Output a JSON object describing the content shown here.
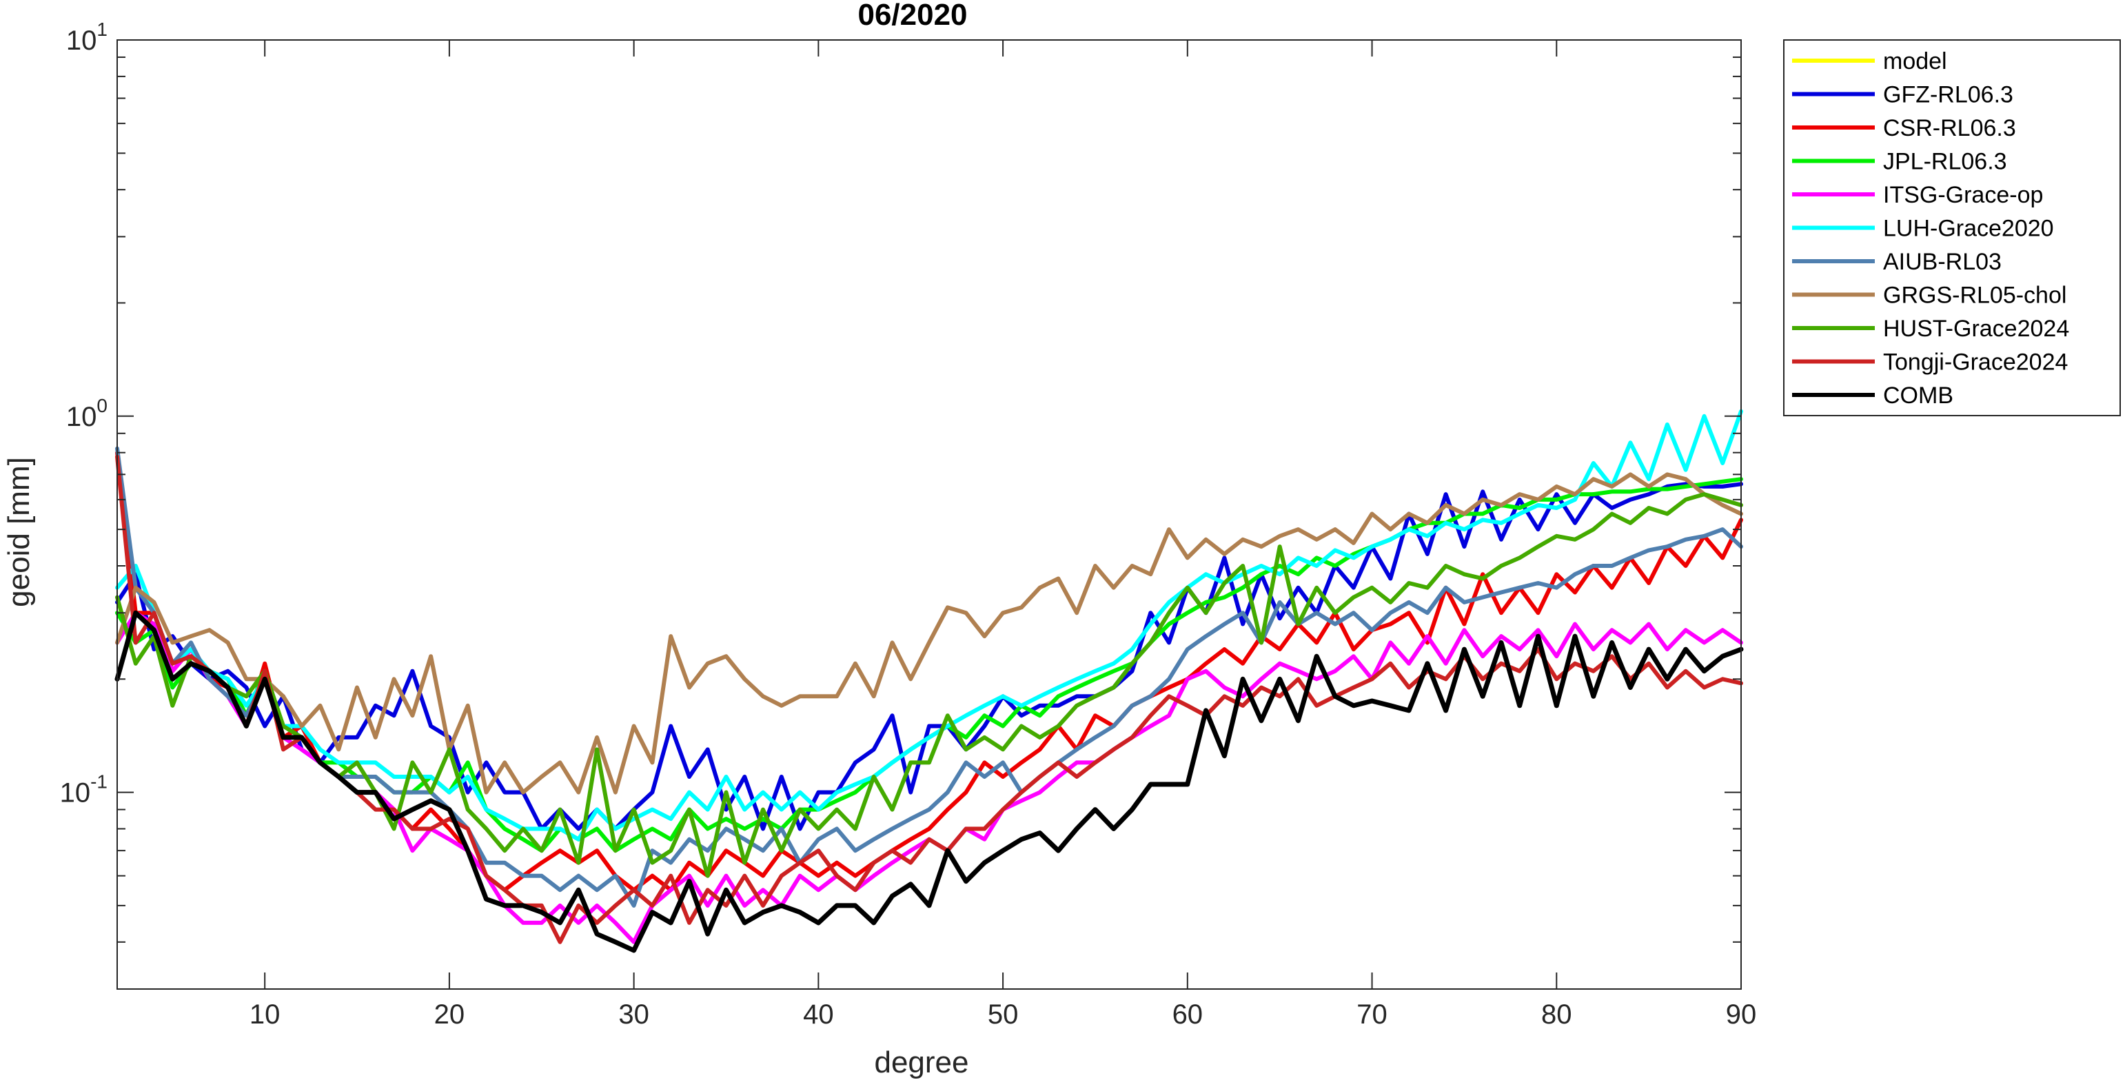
{
  "chart_data": {
    "type": "line",
    "title": "06/2020",
    "xlabel": "degree",
    "ylabel": "geoid [mm]",
    "xlim": [
      2,
      90
    ],
    "ylim": [
      0.03,
      10
    ],
    "yscale": "log",
    "grid": false,
    "legend_position": "outside-top-right",
    "x_ticks": [
      10,
      20,
      30,
      40,
      50,
      60,
      70,
      80,
      90
    ],
    "y_ticks": [
      {
        "value": 0.1,
        "base": "10",
        "exp": "-1"
      },
      {
        "value": 1,
        "base": "10",
        "exp": "0"
      },
      {
        "value": 10,
        "base": "10",
        "exp": "1"
      }
    ],
    "x_start": 2,
    "series": [
      {
        "name": "model",
        "color": "#ffff00",
        "values": []
      },
      {
        "name": "GFZ-RL06.3",
        "color": "#0000dd",
        "values": [
          0.32,
          0.38,
          0.24,
          0.26,
          0.22,
          0.2,
          0.21,
          0.19,
          0.15,
          0.18,
          0.13,
          0.12,
          0.14,
          0.14,
          0.17,
          0.16,
          0.21,
          0.15,
          0.14,
          0.1,
          0.12,
          0.1,
          0.1,
          0.08,
          0.09,
          0.08,
          0.09,
          0.08,
          0.09,
          0.1,
          0.15,
          0.11,
          0.13,
          0.09,
          0.11,
          0.08,
          0.11,
          0.08,
          0.1,
          0.1,
          0.12,
          0.13,
          0.16,
          0.1,
          0.15,
          0.15,
          0.13,
          0.15,
          0.18,
          0.16,
          0.17,
          0.17,
          0.18,
          0.18,
          0.19,
          0.21,
          0.3,
          0.25,
          0.35,
          0.3,
          0.42,
          0.28,
          0.38,
          0.29,
          0.35,
          0.3,
          0.4,
          0.35,
          0.45,
          0.37,
          0.55,
          0.43,
          0.62,
          0.45,
          0.63,
          0.47,
          0.6,
          0.5,
          0.62,
          0.52,
          0.62,
          0.57,
          0.6,
          0.62,
          0.65,
          0.66,
          0.65,
          0.65,
          0.66
        ]
      },
      {
        "name": "CSR-RL06.3",
        "color": "#ee0000",
        "values": [
          0.8,
          0.3,
          0.3,
          0.21,
          0.24,
          0.2,
          0.19,
          0.15,
          0.22,
          0.14,
          0.15,
          0.12,
          0.11,
          0.1,
          0.1,
          0.09,
          0.08,
          0.09,
          0.08,
          0.07,
          0.06,
          0.055,
          0.06,
          0.065,
          0.07,
          0.065,
          0.07,
          0.06,
          0.055,
          0.06,
          0.055,
          0.065,
          0.06,
          0.07,
          0.065,
          0.06,
          0.07,
          0.065,
          0.06,
          0.065,
          0.06,
          0.065,
          0.07,
          0.075,
          0.08,
          0.09,
          0.1,
          0.12,
          0.11,
          0.12,
          0.13,
          0.15,
          0.13,
          0.16,
          0.15,
          0.17,
          0.18,
          0.19,
          0.2,
          0.22,
          0.24,
          0.22,
          0.26,
          0.24,
          0.28,
          0.25,
          0.3,
          0.24,
          0.27,
          0.28,
          0.3,
          0.25,
          0.35,
          0.28,
          0.38,
          0.3,
          0.35,
          0.3,
          0.38,
          0.34,
          0.4,
          0.35,
          0.42,
          0.36,
          0.45,
          0.4,
          0.48,
          0.42,
          0.53
        ]
      },
      {
        "name": "JPL-RL06.3",
        "color": "#00ee00",
        "values": [
          0.3,
          0.25,
          0.27,
          0.19,
          0.22,
          0.21,
          0.2,
          0.16,
          0.21,
          0.15,
          0.14,
          0.12,
          0.12,
          0.11,
          0.11,
          0.1,
          0.1,
          0.11,
          0.1,
          0.12,
          0.09,
          0.08,
          0.075,
          0.07,
          0.08,
          0.075,
          0.08,
          0.07,
          0.075,
          0.08,
          0.075,
          0.09,
          0.08,
          0.085,
          0.08,
          0.085,
          0.08,
          0.09,
          0.09,
          0.095,
          0.1,
          0.11,
          0.12,
          0.13,
          0.14,
          0.15,
          0.14,
          0.16,
          0.15,
          0.17,
          0.16,
          0.18,
          0.19,
          0.2,
          0.21,
          0.22,
          0.25,
          0.28,
          0.3,
          0.32,
          0.33,
          0.35,
          0.38,
          0.4,
          0.38,
          0.42,
          0.4,
          0.43,
          0.45,
          0.47,
          0.5,
          0.52,
          0.52,
          0.55,
          0.55,
          0.58,
          0.57,
          0.6,
          0.6,
          0.62,
          0.62,
          0.63,
          0.63,
          0.64,
          0.64,
          0.65,
          0.66,
          0.67,
          0.68
        ]
      },
      {
        "name": "ITSG-Grace-op",
        "color": "#ff00ff",
        "values": [
          0.25,
          0.3,
          0.28,
          0.21,
          0.24,
          0.2,
          0.18,
          0.15,
          0.21,
          0.14,
          0.13,
          0.12,
          0.11,
          0.1,
          0.1,
          0.09,
          0.07,
          0.08,
          0.075,
          0.07,
          0.06,
          0.05,
          0.045,
          0.045,
          0.05,
          0.045,
          0.05,
          0.045,
          0.04,
          0.05,
          0.055,
          0.06,
          0.05,
          0.06,
          0.05,
          0.055,
          0.05,
          0.06,
          0.055,
          0.06,
          0.055,
          0.06,
          0.065,
          0.07,
          0.075,
          0.07,
          0.08,
          0.075,
          0.09,
          0.095,
          0.1,
          0.11,
          0.12,
          0.12,
          0.13,
          0.14,
          0.15,
          0.16,
          0.2,
          0.21,
          0.19,
          0.18,
          0.2,
          0.22,
          0.21,
          0.2,
          0.21,
          0.23,
          0.2,
          0.25,
          0.22,
          0.26,
          0.22,
          0.27,
          0.23,
          0.26,
          0.24,
          0.27,
          0.23,
          0.28,
          0.24,
          0.27,
          0.25,
          0.28,
          0.24,
          0.27,
          0.25,
          0.27,
          0.25
        ]
      },
      {
        "name": "LUH-Grace2020",
        "color": "#00ffff",
        "values": [
          0.35,
          0.4,
          0.3,
          0.22,
          0.24,
          0.21,
          0.2,
          0.17,
          0.2,
          0.15,
          0.15,
          0.13,
          0.12,
          0.12,
          0.12,
          0.11,
          0.11,
          0.11,
          0.1,
          0.11,
          0.09,
          0.085,
          0.08,
          0.08,
          0.08,
          0.075,
          0.09,
          0.08,
          0.085,
          0.09,
          0.085,
          0.1,
          0.09,
          0.11,
          0.09,
          0.1,
          0.09,
          0.1,
          0.09,
          0.1,
          0.105,
          0.11,
          0.12,
          0.13,
          0.14,
          0.15,
          0.16,
          0.17,
          0.18,
          0.17,
          0.18,
          0.19,
          0.2,
          0.21,
          0.22,
          0.24,
          0.28,
          0.32,
          0.35,
          0.38,
          0.36,
          0.38,
          0.4,
          0.38,
          0.42,
          0.4,
          0.44,
          0.42,
          0.45,
          0.47,
          0.5,
          0.48,
          0.52,
          0.5,
          0.53,
          0.52,
          0.55,
          0.58,
          0.57,
          0.6,
          0.75,
          0.65,
          0.85,
          0.68,
          0.95,
          0.72,
          1.0,
          0.75,
          1.03
        ]
      },
      {
        "name": "AIUB-RL03",
        "color": "#4f7faf",
        "values": [
          0.82,
          0.35,
          0.3,
          0.22,
          0.25,
          0.2,
          0.18,
          0.16,
          0.2,
          0.14,
          0.14,
          0.12,
          0.11,
          0.11,
          0.11,
          0.1,
          0.1,
          0.1,
          0.09,
          0.08,
          0.065,
          0.065,
          0.06,
          0.06,
          0.055,
          0.06,
          0.055,
          0.06,
          0.05,
          0.07,
          0.065,
          0.075,
          0.07,
          0.08,
          0.075,
          0.07,
          0.08,
          0.065,
          0.075,
          0.08,
          0.07,
          0.075,
          0.08,
          0.085,
          0.09,
          0.1,
          0.12,
          0.11,
          0.12,
          0.1,
          0.11,
          0.12,
          0.13,
          0.14,
          0.15,
          0.17,
          0.18,
          0.2,
          0.24,
          0.26,
          0.28,
          0.3,
          0.25,
          0.32,
          0.28,
          0.3,
          0.28,
          0.3,
          0.27,
          0.3,
          0.32,
          0.3,
          0.35,
          0.32,
          0.33,
          0.34,
          0.35,
          0.36,
          0.35,
          0.38,
          0.4,
          0.4,
          0.42,
          0.44,
          0.45,
          0.47,
          0.48,
          0.5,
          0.45
        ]
      },
      {
        "name": "GRGS-RL05-chol",
        "color": "#b08050",
        "values": [
          0.25,
          0.35,
          0.32,
          0.25,
          0.26,
          0.27,
          0.25,
          0.2,
          0.2,
          0.18,
          0.15,
          0.17,
          0.13,
          0.19,
          0.14,
          0.2,
          0.16,
          0.23,
          0.13,
          0.17,
          0.1,
          0.12,
          0.1,
          0.11,
          0.12,
          0.1,
          0.14,
          0.1,
          0.15,
          0.12,
          0.26,
          0.19,
          0.22,
          0.23,
          0.2,
          0.18,
          0.17,
          0.18,
          0.18,
          0.18,
          0.22,
          0.18,
          0.25,
          0.2,
          0.25,
          0.31,
          0.3,
          0.26,
          0.3,
          0.31,
          0.35,
          0.37,
          0.3,
          0.4,
          0.35,
          0.4,
          0.38,
          0.5,
          0.42,
          0.47,
          0.43,
          0.47,
          0.45,
          0.48,
          0.5,
          0.47,
          0.5,
          0.46,
          0.55,
          0.5,
          0.55,
          0.52,
          0.58,
          0.55,
          0.6,
          0.58,
          0.62,
          0.6,
          0.65,
          0.62,
          0.68,
          0.65,
          0.7,
          0.65,
          0.7,
          0.68,
          0.62,
          0.58,
          0.55
        ]
      },
      {
        "name": "HUST-Grace2024",
        "color": "#44aa00",
        "values": [
          0.33,
          0.22,
          0.26,
          0.17,
          0.23,
          0.21,
          0.19,
          0.18,
          0.21,
          0.15,
          0.14,
          0.12,
          0.11,
          0.12,
          0.1,
          0.08,
          0.12,
          0.1,
          0.13,
          0.09,
          0.08,
          0.07,
          0.08,
          0.07,
          0.09,
          0.065,
          0.13,
          0.07,
          0.09,
          0.065,
          0.07,
          0.09,
          0.06,
          0.1,
          0.065,
          0.09,
          0.07,
          0.09,
          0.08,
          0.09,
          0.08,
          0.11,
          0.09,
          0.12,
          0.12,
          0.16,
          0.13,
          0.14,
          0.13,
          0.15,
          0.14,
          0.15,
          0.17,
          0.18,
          0.19,
          0.22,
          0.25,
          0.3,
          0.35,
          0.3,
          0.36,
          0.4,
          0.25,
          0.45,
          0.28,
          0.35,
          0.3,
          0.33,
          0.35,
          0.32,
          0.36,
          0.35,
          0.4,
          0.38,
          0.37,
          0.4,
          0.42,
          0.45,
          0.48,
          0.47,
          0.5,
          0.55,
          0.52,
          0.57,
          0.55,
          0.6,
          0.62,
          0.6,
          0.58
        ]
      },
      {
        "name": "Tongji-Grace2024",
        "color": "#cc2222",
        "values": [
          0.78,
          0.25,
          0.3,
          0.22,
          0.23,
          0.21,
          0.19,
          0.15,
          0.21,
          0.13,
          0.14,
          0.12,
          0.11,
          0.1,
          0.09,
          0.09,
          0.08,
          0.08,
          0.085,
          0.08,
          0.06,
          0.055,
          0.05,
          0.05,
          0.04,
          0.05,
          0.045,
          0.05,
          0.055,
          0.05,
          0.06,
          0.045,
          0.055,
          0.05,
          0.06,
          0.05,
          0.06,
          0.065,
          0.07,
          0.06,
          0.055,
          0.065,
          0.07,
          0.065,
          0.075,
          0.07,
          0.08,
          0.08,
          0.09,
          0.1,
          0.11,
          0.12,
          0.11,
          0.12,
          0.13,
          0.14,
          0.16,
          0.18,
          0.17,
          0.16,
          0.18,
          0.17,
          0.19,
          0.18,
          0.2,
          0.17,
          0.18,
          0.19,
          0.2,
          0.22,
          0.19,
          0.21,
          0.2,
          0.23,
          0.2,
          0.22,
          0.21,
          0.24,
          0.2,
          0.22,
          0.21,
          0.23,
          0.2,
          0.22,
          0.19,
          0.21,
          0.19,
          0.2,
          0.195
        ]
      },
      {
        "name": "COMB",
        "color": "#000000",
        "values": [
          0.2,
          0.3,
          0.27,
          0.2,
          0.22,
          0.21,
          0.19,
          0.15,
          0.2,
          0.14,
          0.14,
          0.12,
          0.11,
          0.1,
          0.1,
          0.085,
          0.09,
          0.095,
          0.09,
          0.07,
          0.052,
          0.05,
          0.05,
          0.048,
          0.045,
          0.055,
          0.042,
          0.04,
          0.038,
          0.048,
          0.045,
          0.058,
          0.042,
          0.055,
          0.045,
          0.048,
          0.05,
          0.048,
          0.045,
          0.05,
          0.05,
          0.045,
          0.053,
          0.057,
          0.05,
          0.07,
          0.058,
          0.065,
          0.07,
          0.075,
          0.078,
          0.07,
          0.08,
          0.09,
          0.08,
          0.09,
          0.105,
          0.105,
          0.105,
          0.165,
          0.125,
          0.2,
          0.155,
          0.2,
          0.155,
          0.23,
          0.18,
          0.17,
          0.175,
          0.17,
          0.165,
          0.22,
          0.165,
          0.24,
          0.18,
          0.25,
          0.17,
          0.26,
          0.17,
          0.26,
          0.18,
          0.25,
          0.19,
          0.24,
          0.2,
          0.24,
          0.21,
          0.23,
          0.24
        ]
      }
    ]
  }
}
